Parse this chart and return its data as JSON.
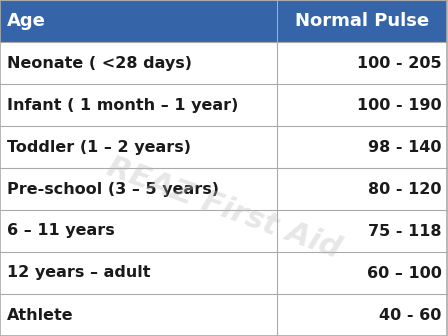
{
  "header": [
    "Age",
    "Normal Pulse"
  ],
  "rows": [
    [
      "Neonate ( <28 days)",
      "100 - 205"
    ],
    [
      "Infant ( 1 month – 1 year)",
      "100 - 190"
    ],
    [
      "Toddler (1 – 2 years)",
      "98 - 140"
    ],
    [
      "Pre-school (3 – 5 years)",
      "80 - 120"
    ],
    [
      "6 – 11 years",
      "75 - 118"
    ],
    [
      "12 years – adult",
      "60 – 100"
    ],
    [
      "Athlete",
      "40 - 60"
    ]
  ],
  "header_bg": "#3565A8",
  "header_text_color": "#FFFFFF",
  "row_bg": "#FFFFFF",
  "row_text_color": "#1a1a1a",
  "grid_color": "#AAAAAA",
  "col_split": 0.62,
  "watermark_text": "REAZ First Aid",
  "watermark_color": "#BBBBBB",
  "watermark_alpha": 0.35
}
